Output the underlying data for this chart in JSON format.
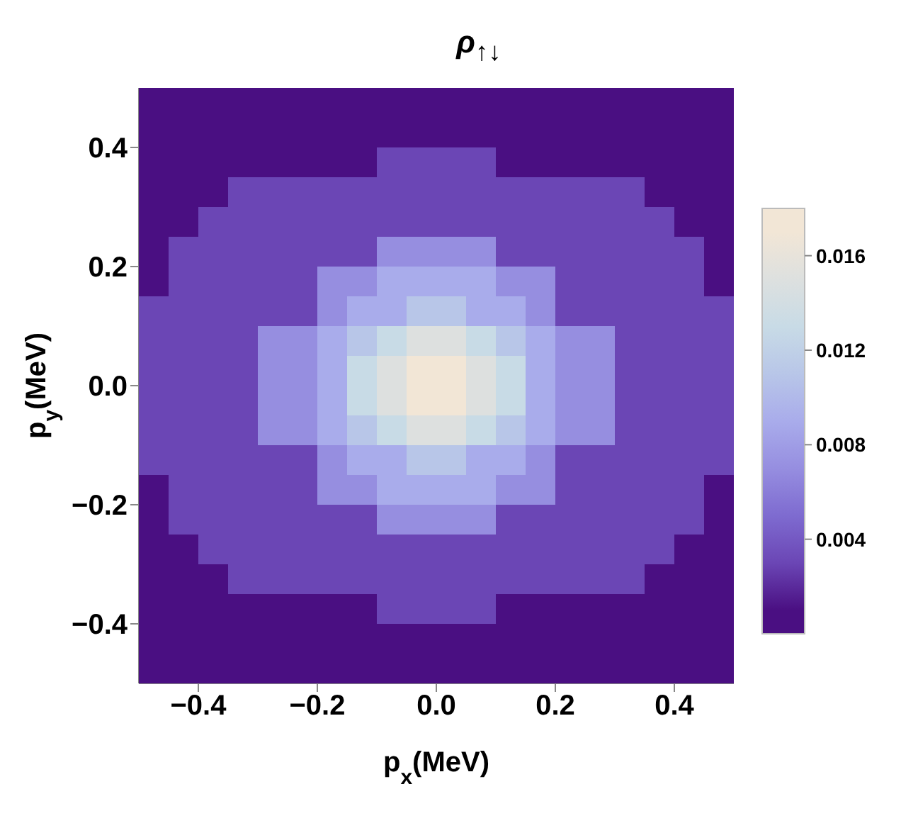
{
  "chart_data": {
    "type": "heatmap",
    "title": "ρ$_{↑↓}$",
    "xlabel": "p$_{x}$(MeV)",
    "ylabel": "p$_{y}$(MeV)",
    "xlim": [
      -0.5,
      0.5
    ],
    "ylim": [
      -0.5,
      0.5
    ],
    "xticks": [
      {
        "value": -0.4,
        "label": "−0.4"
      },
      {
        "value": -0.2,
        "label": "−0.2"
      },
      {
        "value": 0,
        "label": "0.0"
      },
      {
        "value": 0.2,
        "label": "0.2"
      },
      {
        "value": 0.4,
        "label": "0.4"
      }
    ],
    "yticks": [
      {
        "value": -0.4,
        "label": "−0.4"
      },
      {
        "value": -0.2,
        "label": "−0.2"
      },
      {
        "value": 0,
        "label": "0.0"
      },
      {
        "value": 0.2,
        "label": "0.2"
      },
      {
        "value": 0.4,
        "label": "0.4"
      }
    ],
    "clim": [
      0,
      0.018
    ],
    "cticks": [
      0.004,
      0.008,
      0.012,
      0.016
    ],
    "colors": [
      "#4a0f82",
      "#6b46b5",
      "#7e6bd0",
      "#968ee0",
      "#a9aceb",
      "#b8c6e8",
      "#c8dbe6",
      "#dde0df",
      "#f2e6d6"
    ],
    "cells": [
      [
        0.001,
        0.001,
        0.001,
        0.001,
        0.001,
        0.001,
        0.001,
        0.001,
        0.001,
        0.001,
        0.001,
        0.001,
        0.001,
        0.001,
        0.001,
        0.001,
        0.001,
        0.001,
        0.001,
        0.001
      ],
      [
        0.001,
        0.001,
        0.001,
        0.001,
        0.001,
        0.001,
        0.001,
        0.001,
        0.001,
        0.001,
        0.001,
        0.001,
        0.001,
        0.001,
        0.001,
        0.001,
        0.001,
        0.001,
        0.001,
        0.001
      ],
      [
        0.001,
        0.001,
        0.001,
        0.001,
        0.001,
        0.001,
        0.001,
        0.001,
        0.003,
        0.003,
        0.003,
        0.003,
        0.001,
        0.001,
        0.001,
        0.001,
        0.001,
        0.001,
        0.001,
        0.001
      ],
      [
        0.001,
        0.001,
        0.001,
        0.003,
        0.003,
        0.003,
        0.003,
        0.003,
        0.003,
        0.003,
        0.003,
        0.003,
        0.003,
        0.003,
        0.003,
        0.003,
        0.003,
        0.001,
        0.001,
        0.001
      ],
      [
        0.001,
        0.001,
        0.003,
        0.003,
        0.003,
        0.003,
        0.003,
        0.003,
        0.003,
        0.003,
        0.003,
        0.003,
        0.003,
        0.003,
        0.003,
        0.003,
        0.003,
        0.003,
        0.001,
        0.001
      ],
      [
        0.001,
        0.003,
        0.003,
        0.003,
        0.003,
        0.003,
        0.003,
        0.003,
        0.007,
        0.007,
        0.007,
        0.007,
        0.003,
        0.003,
        0.003,
        0.003,
        0.003,
        0.003,
        0.003,
        0.001
      ],
      [
        0.001,
        0.003,
        0.003,
        0.003,
        0.003,
        0.003,
        0.007,
        0.007,
        0.009,
        0.009,
        0.009,
        0.009,
        0.007,
        0.007,
        0.003,
        0.003,
        0.003,
        0.003,
        0.003,
        0.001
      ],
      [
        0.003,
        0.003,
        0.003,
        0.003,
        0.003,
        0.003,
        0.007,
        0.009,
        0.009,
        0.011,
        0.011,
        0.009,
        0.009,
        0.007,
        0.003,
        0.003,
        0.003,
        0.003,
        0.003,
        0.003
      ],
      [
        0.003,
        0.003,
        0.003,
        0.003,
        0.007,
        0.007,
        0.009,
        0.011,
        0.013,
        0.015,
        0.015,
        0.013,
        0.011,
        0.009,
        0.007,
        0.007,
        0.003,
        0.003,
        0.003,
        0.003
      ],
      [
        0.003,
        0.003,
        0.003,
        0.003,
        0.007,
        0.007,
        0.009,
        0.013,
        0.015,
        0.017,
        0.017,
        0.015,
        0.013,
        0.009,
        0.007,
        0.007,
        0.003,
        0.003,
        0.003,
        0.003
      ],
      [
        0.003,
        0.003,
        0.003,
        0.003,
        0.007,
        0.007,
        0.009,
        0.013,
        0.015,
        0.017,
        0.017,
        0.015,
        0.013,
        0.009,
        0.007,
        0.007,
        0.003,
        0.003,
        0.003,
        0.003
      ],
      [
        0.003,
        0.003,
        0.003,
        0.003,
        0.007,
        0.007,
        0.009,
        0.011,
        0.013,
        0.015,
        0.015,
        0.013,
        0.011,
        0.009,
        0.007,
        0.007,
        0.003,
        0.003,
        0.003,
        0.003
      ],
      [
        0.003,
        0.003,
        0.003,
        0.003,
        0.003,
        0.003,
        0.007,
        0.009,
        0.009,
        0.011,
        0.011,
        0.009,
        0.009,
        0.007,
        0.003,
        0.003,
        0.003,
        0.003,
        0.003,
        0.003
      ],
      [
        0.001,
        0.003,
        0.003,
        0.003,
        0.003,
        0.003,
        0.007,
        0.007,
        0.009,
        0.009,
        0.009,
        0.009,
        0.007,
        0.007,
        0.003,
        0.003,
        0.003,
        0.003,
        0.003,
        0.001
      ],
      [
        0.001,
        0.003,
        0.003,
        0.003,
        0.003,
        0.003,
        0.003,
        0.003,
        0.007,
        0.007,
        0.007,
        0.007,
        0.003,
        0.003,
        0.003,
        0.003,
        0.003,
        0.003,
        0.003,
        0.001
      ],
      [
        0.001,
        0.001,
        0.003,
        0.003,
        0.003,
        0.003,
        0.003,
        0.003,
        0.003,
        0.003,
        0.003,
        0.003,
        0.003,
        0.003,
        0.003,
        0.003,
        0.003,
        0.003,
        0.001,
        0.001
      ],
      [
        0.001,
        0.001,
        0.001,
        0.003,
        0.003,
        0.003,
        0.003,
        0.003,
        0.003,
        0.003,
        0.003,
        0.003,
        0.003,
        0.003,
        0.003,
        0.003,
        0.003,
        0.001,
        0.001,
        0.001
      ],
      [
        0.001,
        0.001,
        0.001,
        0.001,
        0.001,
        0.001,
        0.001,
        0.001,
        0.003,
        0.003,
        0.003,
        0.003,
        0.001,
        0.001,
        0.001,
        0.001,
        0.001,
        0.001,
        0.001,
        0.001
      ],
      [
        0.001,
        0.001,
        0.001,
        0.001,
        0.001,
        0.001,
        0.001,
        0.001,
        0.001,
        0.001,
        0.001,
        0.001,
        0.001,
        0.001,
        0.001,
        0.001,
        0.001,
        0.001,
        0.001,
        0.001
      ],
      [
        0.001,
        0.001,
        0.001,
        0.001,
        0.001,
        0.001,
        0.001,
        0.001,
        0.001,
        0.001,
        0.001,
        0.001,
        0.001,
        0.001,
        0.001,
        0.001,
        0.001,
        0.001,
        0.001,
        0.001
      ]
    ]
  }
}
